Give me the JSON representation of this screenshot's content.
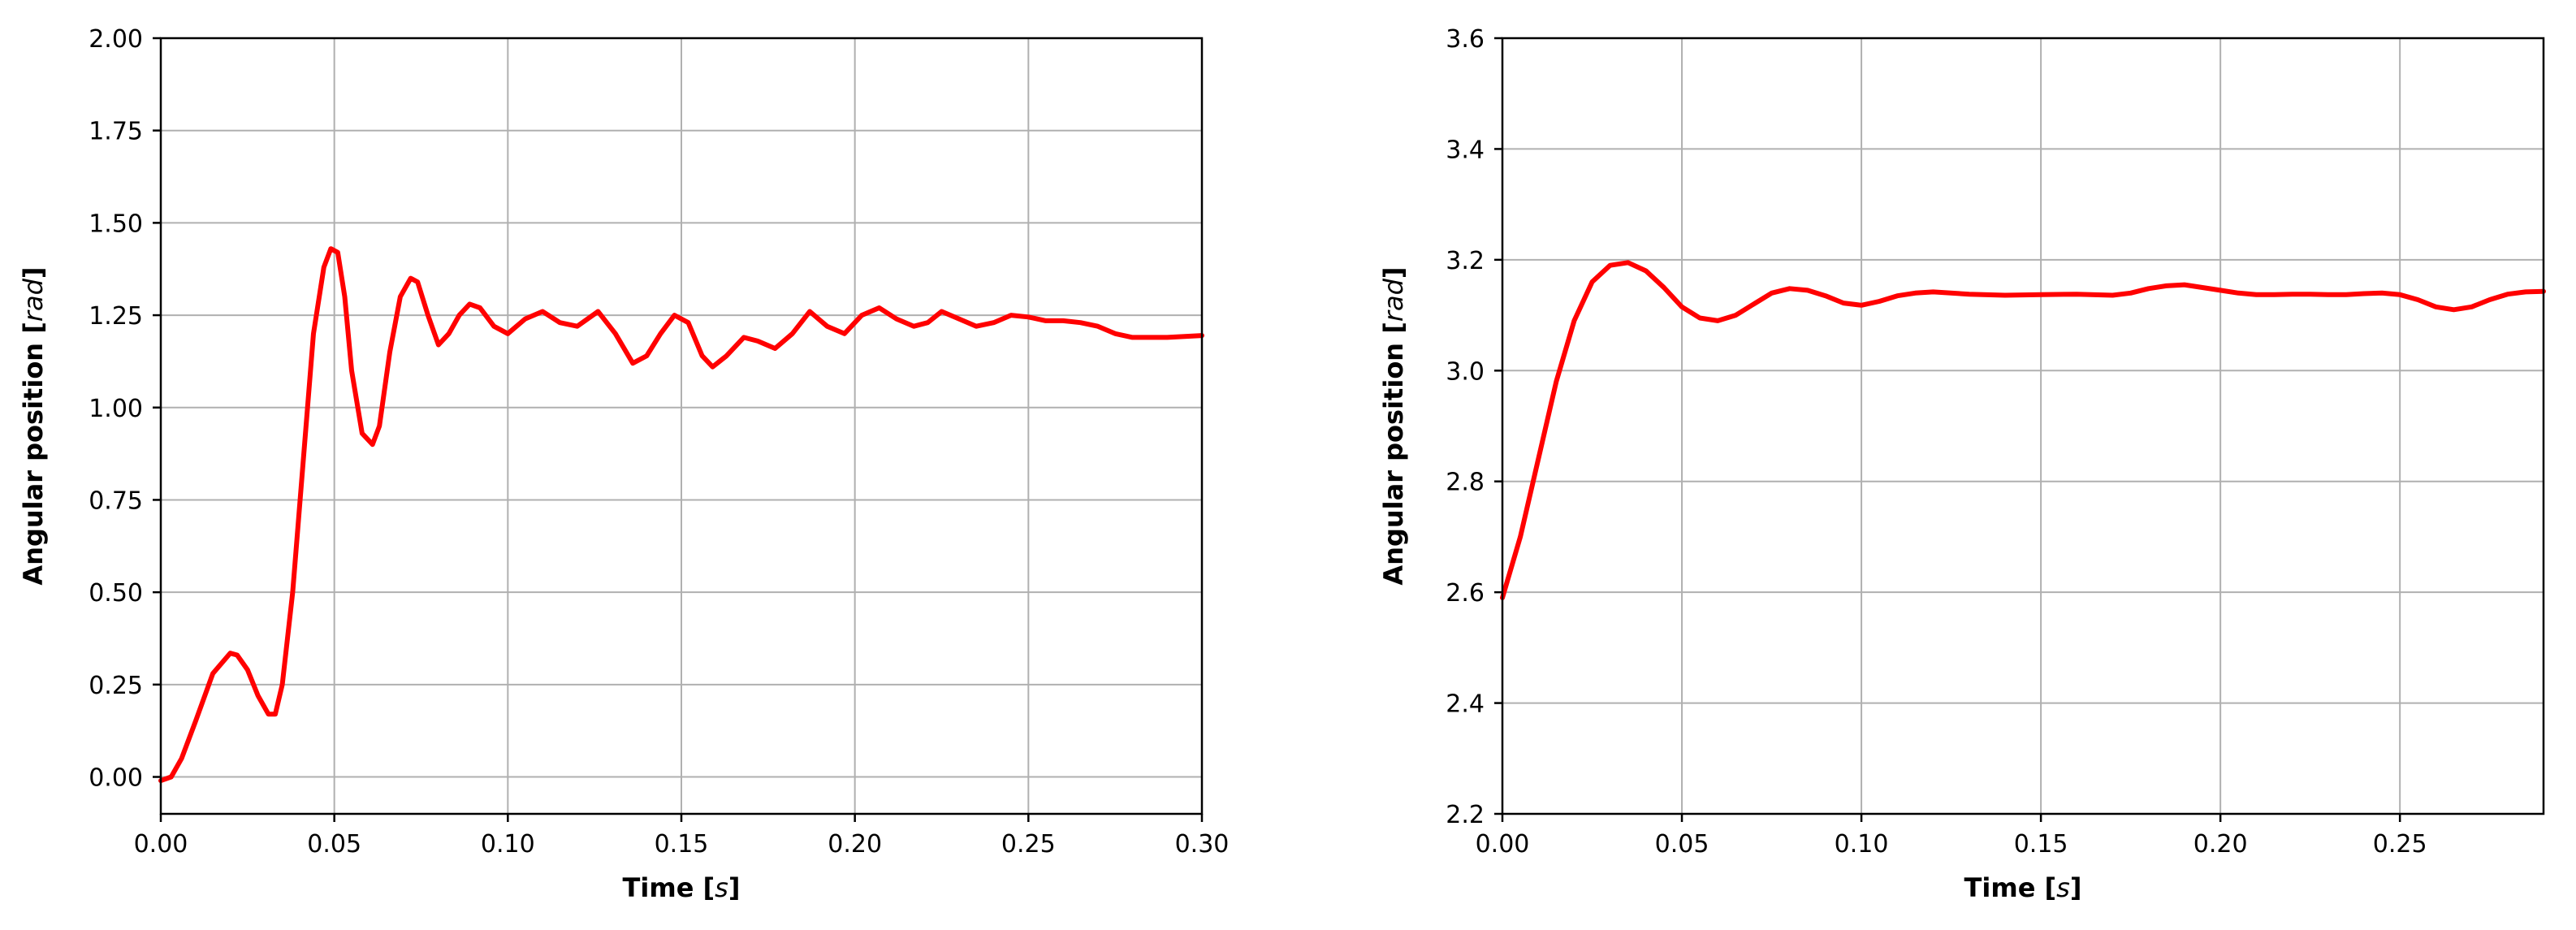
{
  "chart_data": [
    {
      "type": "line",
      "xlabel": "Time",
      "xunit": "s",
      "ylabel": "Angular position",
      "yunit": "rad",
      "xlim": [
        0,
        0.3
      ],
      "ylim": [
        -0.1,
        2.0
      ],
      "grid": true,
      "xticks": [
        0.0,
        0.05,
        0.1,
        0.15,
        0.2,
        0.25,
        0.3
      ],
      "xtick_labels": [
        "0.00",
        "0.05",
        "0.10",
        "0.15",
        "0.20",
        "0.25",
        "0.30"
      ],
      "yticks": [
        0.0,
        0.25,
        0.5,
        0.75,
        1.0,
        1.25,
        1.5,
        1.75,
        2.0
      ],
      "ytick_labels": [
        "0.00",
        "0.25",
        "0.50",
        "0.75",
        "1.00",
        "1.25",
        "1.50",
        "1.75",
        "2.00"
      ],
      "series": [
        {
          "color": "#ff0000",
          "x": [
            0.0,
            0.003,
            0.006,
            0.01,
            0.015,
            0.02,
            0.022,
            0.025,
            0.028,
            0.031,
            0.033,
            0.035,
            0.038,
            0.041,
            0.044,
            0.047,
            0.049,
            0.051,
            0.053,
            0.055,
            0.058,
            0.061,
            0.063,
            0.066,
            0.069,
            0.072,
            0.074,
            0.077,
            0.08,
            0.083,
            0.086,
            0.089,
            0.092,
            0.096,
            0.1,
            0.105,
            0.11,
            0.115,
            0.12,
            0.126,
            0.131,
            0.136,
            0.14,
            0.144,
            0.148,
            0.152,
            0.156,
            0.159,
            0.163,
            0.168,
            0.172,
            0.177,
            0.182,
            0.187,
            0.192,
            0.197,
            0.202,
            0.207,
            0.212,
            0.217,
            0.221,
            0.225,
            0.23,
            0.235,
            0.24,
            0.245,
            0.25,
            0.255,
            0.26,
            0.265,
            0.27,
            0.275,
            0.28,
            0.285,
            0.29,
            0.3
          ],
          "y": [
            -0.01,
            0.0,
            0.05,
            0.15,
            0.28,
            0.335,
            0.33,
            0.29,
            0.22,
            0.17,
            0.17,
            0.25,
            0.5,
            0.85,
            1.2,
            1.38,
            1.43,
            1.42,
            1.3,
            1.1,
            0.93,
            0.9,
            0.95,
            1.15,
            1.3,
            1.35,
            1.34,
            1.25,
            1.17,
            1.2,
            1.25,
            1.28,
            1.27,
            1.22,
            1.2,
            1.24,
            1.26,
            1.23,
            1.22,
            1.26,
            1.2,
            1.12,
            1.14,
            1.2,
            1.25,
            1.23,
            1.14,
            1.11,
            1.14,
            1.19,
            1.18,
            1.16,
            1.2,
            1.26,
            1.22,
            1.2,
            1.25,
            1.27,
            1.24,
            1.22,
            1.23,
            1.26,
            1.24,
            1.22,
            1.23,
            1.25,
            1.245,
            1.235,
            1.235,
            1.23,
            1.22,
            1.2,
            1.19,
            1.19,
            1.19,
            1.195
          ]
        }
      ]
    },
    {
      "type": "line",
      "xlabel": "Time",
      "xunit": "s",
      "ylabel": "Angular position",
      "yunit": "rad",
      "xlim": [
        0,
        0.29
      ],
      "ylim": [
        2.2,
        3.6
      ],
      "grid": true,
      "xticks": [
        0.0,
        0.05,
        0.1,
        0.15,
        0.2,
        0.25
      ],
      "xtick_labels": [
        "0.00",
        "0.05",
        "0.10",
        "0.15",
        "0.20",
        "0.25"
      ],
      "yticks": [
        2.2,
        2.4,
        2.6,
        2.8,
        3.0,
        3.2,
        3.4,
        3.6
      ],
      "ytick_labels": [
        "2.2",
        "2.4",
        "2.6",
        "2.8",
        "3.0",
        "3.2",
        "3.4",
        "3.6"
      ],
      "series": [
        {
          "color": "#ff0000",
          "x": [
            0.0,
            0.005,
            0.01,
            0.015,
            0.02,
            0.025,
            0.03,
            0.035,
            0.04,
            0.045,
            0.05,
            0.055,
            0.06,
            0.065,
            0.07,
            0.075,
            0.08,
            0.085,
            0.09,
            0.095,
            0.1,
            0.105,
            0.11,
            0.115,
            0.12,
            0.13,
            0.14,
            0.15,
            0.16,
            0.17,
            0.175,
            0.18,
            0.185,
            0.19,
            0.195,
            0.2,
            0.205,
            0.21,
            0.215,
            0.22,
            0.225,
            0.23,
            0.235,
            0.24,
            0.245,
            0.25,
            0.255,
            0.26,
            0.265,
            0.27,
            0.275,
            0.28,
            0.285,
            0.29
          ],
          "y": [
            2.59,
            2.7,
            2.84,
            2.98,
            3.09,
            3.16,
            3.19,
            3.195,
            3.18,
            3.15,
            3.115,
            3.095,
            3.09,
            3.1,
            3.12,
            3.14,
            3.148,
            3.145,
            3.135,
            3.122,
            3.118,
            3.125,
            3.135,
            3.14,
            3.142,
            3.138,
            3.136,
            3.137,
            3.138,
            3.136,
            3.14,
            3.148,
            3.153,
            3.155,
            3.15,
            3.145,
            3.14,
            3.137,
            3.137,
            3.138,
            3.138,
            3.137,
            3.137,
            3.139,
            3.14,
            3.137,
            3.128,
            3.115,
            3.11,
            3.115,
            3.128,
            3.138,
            3.142,
            3.143
          ]
        }
      ]
    }
  ]
}
